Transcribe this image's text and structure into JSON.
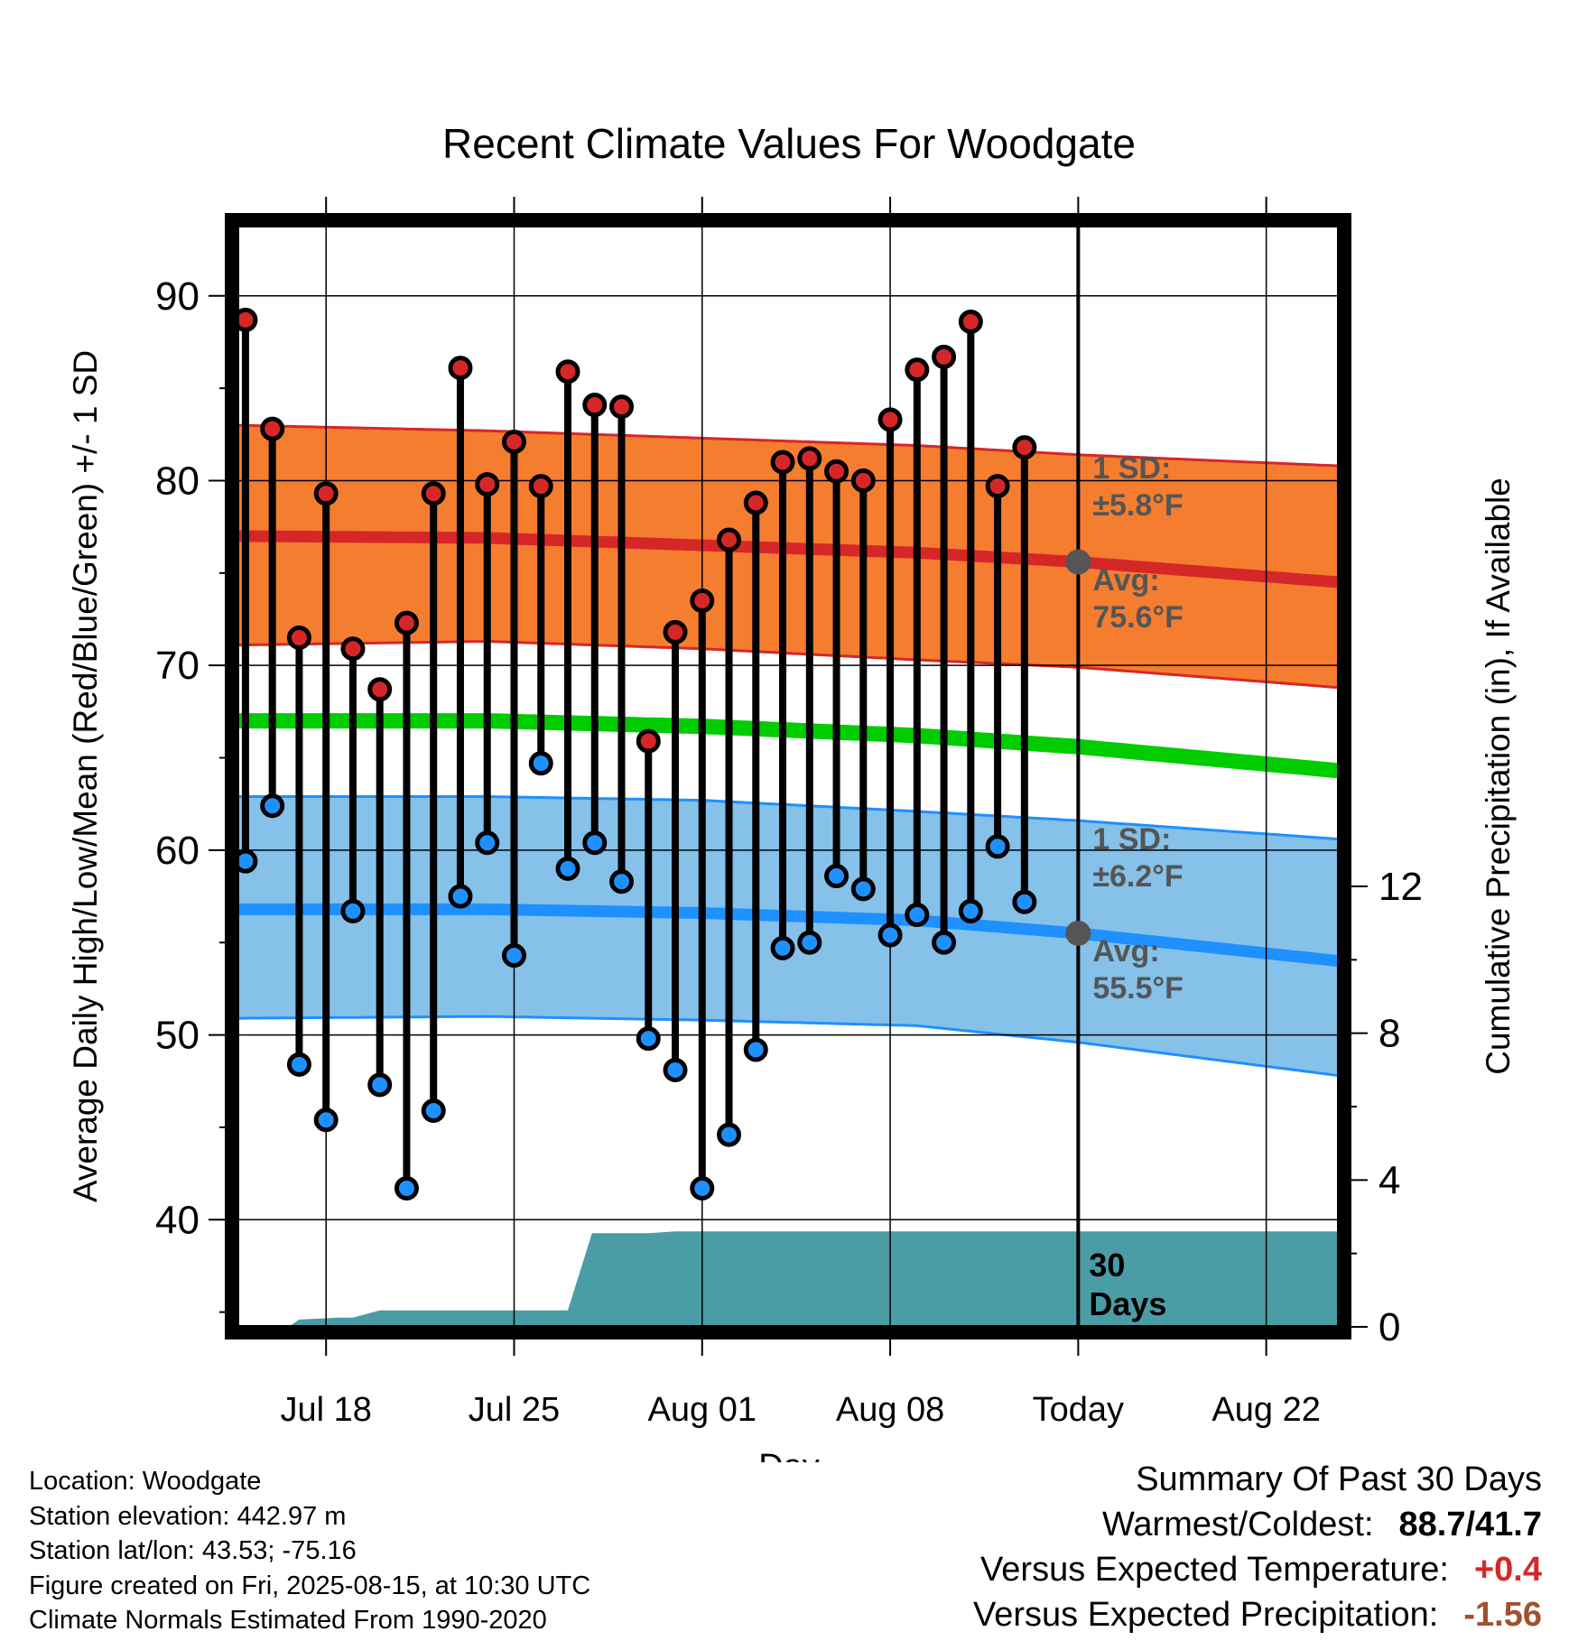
{
  "title": "Recent Climate Values For Woodgate",
  "chart_data": {
    "type": "line",
    "title": "Recent Climate Values For Woodgate",
    "xlabel": "Day",
    "ylabel_left": "Average Daily High/Low/Mean (Red/Blue/Green) +/- 1 SD",
    "ylabel_right": "Cumulative Precipitation (in), If Available",
    "x_ticks": [
      "Jul 18",
      "Jul 25",
      "Aug 01",
      "Aug 08",
      "Today",
      "Aug 22"
    ],
    "x_tick_days": [
      18,
      25,
      32,
      39,
      46,
      53
    ],
    "x_range_days": [
      14.7,
      55.7
    ],
    "today_day": 46,
    "y_left_ticks": [
      40,
      50,
      60,
      70,
      80,
      90
    ],
    "y_left_range": [
      34.2,
      93.8
    ],
    "y_right_ticks": [
      0,
      4,
      8,
      12
    ],
    "y_right_range": [
      0,
      30
    ],
    "days": [
      15,
      16,
      17,
      18,
      19,
      20,
      21,
      22,
      23,
      24,
      25,
      26,
      27,
      28,
      29,
      30,
      31,
      32,
      33,
      34,
      35,
      36,
      37,
      38,
      39,
      40,
      41,
      42,
      43,
      44,
      45
    ],
    "highs": [
      88.7,
      82.8,
      71.5,
      79.3,
      70.9,
      68.7,
      72.3,
      79.3,
      86.1,
      79.8,
      82.1,
      79.7,
      85.9,
      84.1,
      84.0,
      65.9,
      71.8,
      73.5,
      76.8,
      78.8,
      81.0,
      81.2,
      80.5,
      80.0,
      83.3,
      86.0,
      86.7,
      88.6,
      79.7,
      81.8,
      null
    ],
    "lows": [
      59.4,
      62.4,
      48.4,
      45.4,
      56.7,
      47.3,
      41.7,
      45.9,
      57.5,
      60.4,
      54.3,
      64.7,
      59.0,
      60.4,
      58.3,
      49.8,
      48.1,
      41.7,
      44.6,
      49.2,
      54.7,
      55.0,
      58.6,
      57.9,
      55.4,
      56.5,
      55.0,
      56.7,
      60.2,
      57.2,
      null
    ],
    "normal_high": {
      "days": [
        14.7,
        24,
        32,
        40,
        46,
        55.7
      ],
      "avg": [
        77.0,
        76.9,
        76.5,
        76.1,
        75.6,
        74.5
      ],
      "upper": [
        83.0,
        82.7,
        82.3,
        81.9,
        81.4,
        80.8
      ],
      "lower": [
        71.1,
        71.3,
        70.9,
        70.3,
        69.9,
        68.8
      ]
    },
    "normal_mean": {
      "days": [
        14.7,
        24,
        32,
        40,
        46,
        55.7
      ],
      "values": [
        67.0,
        67.0,
        66.7,
        66.2,
        65.6,
        64.3
      ]
    },
    "normal_low": {
      "days": [
        14.7,
        24,
        32,
        40,
        46,
        55.7
      ],
      "avg": [
        56.8,
        56.8,
        56.6,
        56.2,
        55.5,
        54.0
      ],
      "upper": [
        62.9,
        62.9,
        62.7,
        62.1,
        61.6,
        60.6
      ],
      "lower": [
        50.9,
        51.0,
        50.8,
        50.5,
        49.6,
        47.8
      ]
    },
    "precip_cumulative": {
      "days": [
        15,
        16,
        16.7,
        17,
        18.5,
        19,
        20,
        20.5,
        21,
        22,
        24,
        25,
        26,
        27,
        27.9,
        29,
        30,
        31,
        55.7
      ],
      "values": [
        0,
        0,
        0.05,
        0.2,
        0.25,
        0.25,
        0.45,
        0.45,
        0.45,
        0.45,
        0.45,
        0.45,
        0.45,
        0.45,
        2.55,
        2.55,
        2.55,
        2.6,
        2.6
      ]
    },
    "annotations": {
      "high_sd_label": "1 SD:",
      "high_sd_value": "±5.8°F",
      "high_avg_label": "Avg:",
      "high_avg_value": "75.6°F",
      "low_sd_label": "1 SD:",
      "low_sd_value": "±6.2°F",
      "low_avg_label": "Avg:",
      "low_avg_value": "55.5°F",
      "days_count": "30",
      "days_word": "Days"
    },
    "colors": {
      "high_band": "#f47d30",
      "high_line": "#d62728",
      "low_band": "#85c1e9",
      "low_line": "#1e90ff",
      "mean_line": "#00cc00",
      "precip": "#4a9ca5",
      "high_dot": "#d62728",
      "low_dot": "#1e90ff",
      "annotation": "#555555"
    }
  },
  "station": {
    "location": "Location: Woodgate",
    "elevation": "Station elevation: 442.97 m",
    "latlon": "Station lat/lon: 43.53; -75.16",
    "created": "Figure created on Fri, 2025-08-15, at 10:30 UTC",
    "normals": "Climate Normals Estimated From 1990-2020"
  },
  "summary": {
    "heading": "Summary Of Past 30 Days",
    "warmest_label": "Warmest/Coldest:",
    "warmest_value": "88.7/41.7",
    "temp_label": "Versus Expected Temperature:",
    "temp_value": "+0.4",
    "precip_label": "Versus Expected Precipitation:",
    "precip_value": "-1.56"
  }
}
